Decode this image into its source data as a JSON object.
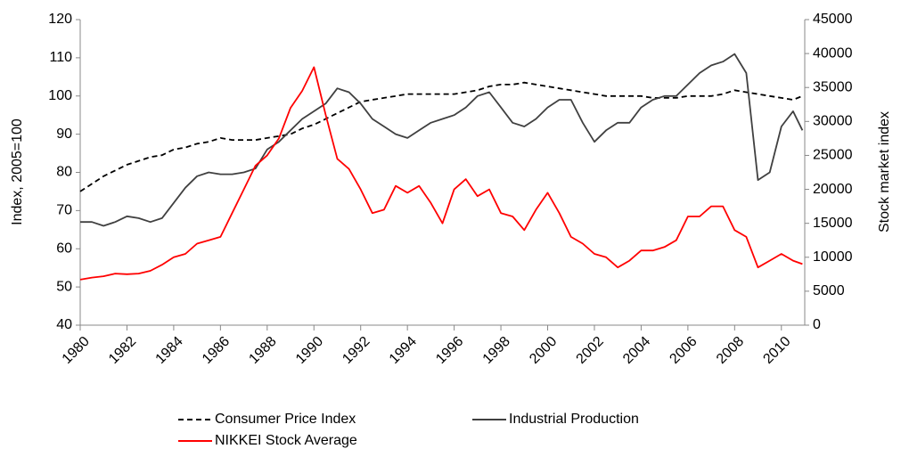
{
  "chart_data": {
    "type": "line",
    "ylabel": "Index, 2005=100",
    "y2label": "Stock market index",
    "xlim": [
      1980,
      2011
    ],
    "xticks": [
      1980,
      1982,
      1984,
      1986,
      1988,
      1990,
      1992,
      1994,
      1996,
      1998,
      2000,
      2002,
      2004,
      2006,
      2008,
      2010
    ],
    "ylim": [
      40,
      120
    ],
    "yticks": [
      40,
      50,
      60,
      70,
      80,
      90,
      100,
      110,
      120
    ],
    "y2lim": [
      0,
      45000
    ],
    "y2ticks": [
      0,
      5000,
      10000,
      15000,
      20000,
      25000,
      30000,
      35000,
      40000,
      45000
    ],
    "legend": "bottom",
    "x": [
      1980,
      1980.5,
      1981,
      1981.5,
      1982,
      1982.5,
      1983,
      1983.5,
      1984,
      1984.5,
      1985,
      1985.5,
      1986,
      1986.5,
      1987,
      1987.5,
      1988,
      1988.5,
      1989,
      1989.5,
      1990,
      1990.5,
      1991,
      1991.5,
      1992,
      1992.5,
      1993,
      1993.5,
      1994,
      1994.5,
      1995,
      1995.5,
      1996,
      1996.5,
      1997,
      1997.5,
      1998,
      1998.5,
      1999,
      1999.5,
      2000,
      2000.5,
      2001,
      2001.5,
      2002,
      2002.5,
      2003,
      2003.5,
      2004,
      2004.5,
      2005,
      2005.5,
      2006,
      2006.5,
      2007,
      2007.5,
      2008,
      2008.5,
      2009,
      2009.5,
      2010,
      2010.5,
      2010.9
    ],
    "series": [
      {
        "name": "Consumer Price Index",
        "color": "#000000",
        "dashed": true,
        "values": [
          75,
          77,
          79,
          80.5,
          82,
          83,
          84,
          84.5,
          86,
          86.5,
          87.5,
          88,
          89,
          88.5,
          88.5,
          88.5,
          89,
          89.5,
          90,
          91.5,
          92.5,
          94,
          95.5,
          97,
          98.5,
          99,
          99.5,
          100,
          100.5,
          100.5,
          100.5,
          100.5,
          100.5,
          101,
          101.5,
          102.5,
          103,
          103,
          103.5,
          103,
          102.5,
          102,
          101.5,
          101,
          100.5,
          100,
          100,
          100,
          100,
          99.5,
          99.5,
          99.5,
          100,
          100,
          100,
          100.5,
          101.5,
          101,
          100.5,
          100,
          99.5,
          99,
          100
        ]
      },
      {
        "name": "Industrial Production",
        "color": "#404040",
        "dashed": false,
        "values": [
          67,
          67,
          66,
          67,
          68.5,
          68,
          67,
          68,
          72,
          76,
          79,
          80,
          79.5,
          79.5,
          80,
          81,
          86,
          88,
          91,
          94,
          96,
          98,
          102,
          101,
          98,
          94,
          92,
          90,
          89,
          91,
          93,
          94,
          95,
          97,
          100,
          101,
          97,
          93,
          92,
          94,
          97,
          99,
          99,
          93,
          88,
          91,
          93,
          93,
          97,
          99,
          100,
          100,
          103,
          106,
          108,
          109,
          111,
          106,
          78,
          80,
          92,
          96,
          91
        ]
      },
      {
        "name": "NIKKEI Stock Average",
        "color": "#ff0000",
        "dashed": false,
        "axis": "y2",
        "values": [
          6700,
          7000,
          7200,
          7600,
          7500,
          7600,
          8000,
          8900,
          10000,
          10500,
          12000,
          12500,
          13000,
          16500,
          20000,
          23500,
          25000,
          27500,
          32000,
          34500,
          38000,
          31000,
          24500,
          23000,
          20000,
          16500,
          17000,
          20500,
          19500,
          20500,
          18000,
          15000,
          20000,
          21500,
          19000,
          20000,
          16500,
          16000,
          14000,
          17000,
          19500,
          16500,
          13000,
          12000,
          10500,
          10000,
          8500,
          9500,
          11000,
          11000,
          11500,
          12500,
          16000,
          16000,
          17500,
          17500,
          14000,
          13000,
          8500,
          9500,
          10500,
          9500,
          9000
        ]
      }
    ]
  }
}
